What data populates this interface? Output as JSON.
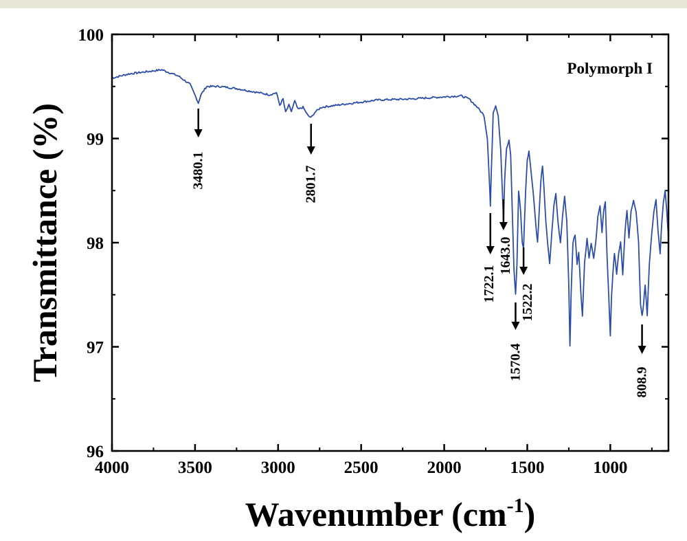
{
  "chart_data": {
    "type": "line",
    "title": "",
    "xlabel": "Wavenumber (cm",
    "xlabel_sup": "-1",
    "xlabel_close": ")",
    "ylabel": "Transmittance (%)",
    "xlim": [
      4000,
      650
    ],
    "ylim": [
      96,
      100
    ],
    "x_reversed": true,
    "x_ticks": [
      4000,
      3500,
      3000,
      2500,
      2000,
      1500,
      1000
    ],
    "y_ticks": [
      96,
      97,
      98,
      99,
      100
    ],
    "legend": {
      "text": "Polymorph I",
      "position": "top-right"
    },
    "series": [
      {
        "color": "#2b4da8",
        "points": [
          [
            4000,
            99.58
          ],
          [
            3900,
            99.62
          ],
          [
            3800,
            99.64
          ],
          [
            3700,
            99.66
          ],
          [
            3600,
            99.6
          ],
          [
            3530,
            99.52
          ],
          [
            3490,
            99.38
          ],
          [
            3480,
            99.34
          ],
          [
            3465,
            99.42
          ],
          [
            3430,
            99.5
          ],
          [
            3350,
            99.5
          ],
          [
            3250,
            99.48
          ],
          [
            3150,
            99.45
          ],
          [
            3050,
            99.42
          ],
          [
            3010,
            99.44
          ],
          [
            2990,
            99.32
          ],
          [
            2970,
            99.38
          ],
          [
            2955,
            99.25
          ],
          [
            2935,
            99.32
          ],
          [
            2920,
            99.26
          ],
          [
            2900,
            99.36
          ],
          [
            2880,
            99.28
          ],
          [
            2850,
            99.3
          ],
          [
            2820,
            99.22
          ],
          [
            2801.7,
            99.2
          ],
          [
            2780,
            99.25
          ],
          [
            2740,
            99.3
          ],
          [
            2600,
            99.33
          ],
          [
            2400,
            99.37
          ],
          [
            2200,
            99.38
          ],
          [
            2000,
            99.4
          ],
          [
            1900,
            99.41
          ],
          [
            1850,
            99.38
          ],
          [
            1800,
            99.3
          ],
          [
            1760,
            99.22
          ],
          [
            1740,
            99.0
          ],
          [
            1728,
            98.6
          ],
          [
            1722.1,
            98.35
          ],
          [
            1716,
            98.7
          ],
          [
            1705,
            99.25
          ],
          [
            1690,
            99.32
          ],
          [
            1675,
            99.22
          ],
          [
            1660,
            98.9
          ],
          [
            1650,
            98.5
          ],
          [
            1643,
            98.2
          ],
          [
            1636,
            98.6
          ],
          [
            1625,
            98.9
          ],
          [
            1610,
            98.98
          ],
          [
            1600,
            98.85
          ],
          [
            1590,
            98.3
          ],
          [
            1580,
            97.75
          ],
          [
            1570.4,
            97.5
          ],
          [
            1562,
            97.8
          ],
          [
            1552,
            98.5
          ],
          [
            1540,
            98.3
          ],
          [
            1530,
            98.0
          ],
          [
            1522.2,
            97.95
          ],
          [
            1510,
            98.5
          ],
          [
            1500,
            98.8
          ],
          [
            1490,
            98.88
          ],
          [
            1478,
            98.7
          ],
          [
            1465,
            98.5
          ],
          [
            1450,
            98.2
          ],
          [
            1438,
            98.0
          ],
          [
            1428,
            98.3
          ],
          [
            1418,
            98.6
          ],
          [
            1408,
            98.73
          ],
          [
            1398,
            98.5
          ],
          [
            1388,
            98.2
          ],
          [
            1378,
            98.0
          ],
          [
            1365,
            97.8
          ],
          [
            1352,
            98.1
          ],
          [
            1340,
            98.35
          ],
          [
            1328,
            98.47
          ],
          [
            1315,
            98.2
          ],
          [
            1300,
            98.0
          ],
          [
            1288,
            98.25
          ],
          [
            1275,
            98.45
          ],
          [
            1262,
            98.2
          ],
          [
            1250,
            97.6
          ],
          [
            1243,
            97.0
          ],
          [
            1236,
            97.5
          ],
          [
            1225,
            98.0
          ],
          [
            1212,
            98.08
          ],
          [
            1200,
            97.8
          ],
          [
            1190,
            97.9
          ],
          [
            1178,
            97.55
          ],
          [
            1168,
            97.3
          ],
          [
            1155,
            97.8
          ],
          [
            1140,
            98.05
          ],
          [
            1128,
            97.85
          ],
          [
            1115,
            98.0
          ],
          [
            1100,
            97.85
          ],
          [
            1088,
            98.0
          ],
          [
            1075,
            98.25
          ],
          [
            1062,
            98.35
          ],
          [
            1050,
            98.1
          ],
          [
            1040,
            98.3
          ],
          [
            1030,
            98.4
          ],
          [
            1020,
            97.9
          ],
          [
            1010,
            97.5
          ],
          [
            1000,
            97.1
          ],
          [
            992,
            97.5
          ],
          [
            985,
            97.7
          ],
          [
            975,
            97.9
          ],
          [
            962,
            97.7
          ],
          [
            950,
            97.9
          ],
          [
            938,
            98.0
          ],
          [
            925,
            97.7
          ],
          [
            912,
            98.1
          ],
          [
            900,
            98.3
          ],
          [
            888,
            98.05
          ],
          [
            875,
            98.3
          ],
          [
            860,
            98.4
          ],
          [
            845,
            98.3
          ],
          [
            830,
            98.0
          ],
          [
            818,
            97.4
          ],
          [
            808.9,
            97.3
          ],
          [
            800,
            97.4
          ],
          [
            790,
            97.6
          ],
          [
            778,
            97.3
          ],
          [
            765,
            97.8
          ],
          [
            750,
            98.1
          ],
          [
            738,
            98.3
          ],
          [
            725,
            98.42
          ],
          [
            712,
            98.1
          ],
          [
            700,
            97.9
          ],
          [
            690,
            98.2
          ],
          [
            680,
            98.4
          ],
          [
            670,
            98.5
          ],
          [
            660,
            98.3
          ],
          [
            650,
            98.05
          ]
        ]
      }
    ],
    "annotations": [
      {
        "label": "3480.1",
        "x": 3480.1
      },
      {
        "label": "2801.7",
        "x": 2801.7
      },
      {
        "label": "1722.1",
        "x": 1722.1
      },
      {
        "label": "1643.0",
        "x": 1643.0
      },
      {
        "label": "1570.4",
        "x": 1570.4
      },
      {
        "label": "1522.2",
        "x": 1522.2
      },
      {
        "label": "808.9",
        "x": 808.9
      }
    ]
  }
}
